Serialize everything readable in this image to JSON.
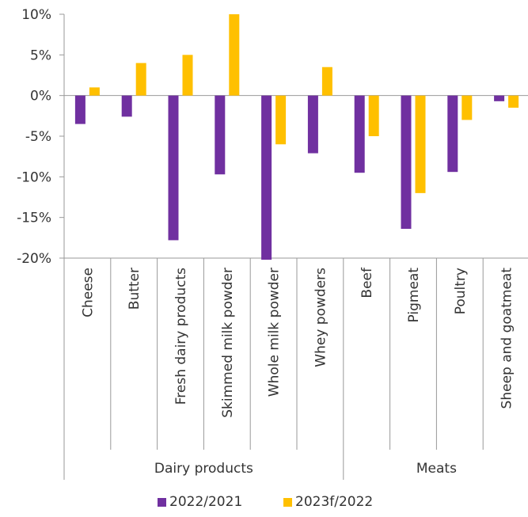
{
  "chart_data": {
    "type": "bar",
    "categories": [
      "Cheese",
      "Butter",
      "Fresh dairy products",
      "Skimmed milk powder",
      "Whole milk powder",
      "Whey powders",
      "Beef",
      "Pigmeat",
      "Poultry",
      "Sheep and goatmeat"
    ],
    "groups": [
      {
        "label": "Dairy products",
        "categories": [
          "Cheese",
          "Butter",
          "Fresh dairy products",
          "Skimmed milk powder",
          "Whole milk powder",
          "Whey powders"
        ]
      },
      {
        "label": "Meats",
        "categories": [
          "Beef",
          "Pigmeat",
          "Poultry",
          "Sheep and goatmeat"
        ]
      }
    ],
    "series": [
      {
        "name": "2022/2021",
        "color": "#7030a0",
        "values": [
          -3.5,
          -2.6,
          -17.8,
          -9.7,
          -20.2,
          -7.1,
          -9.5,
          -16.4,
          -9.4,
          -0.7
        ]
      },
      {
        "name": "2023f/2022",
        "color": "#ffc000",
        "values": [
          1.0,
          4.0,
          5.0,
          10.0,
          -6.0,
          3.5,
          -5.0,
          -12.0,
          -3.0,
          -1.5
        ]
      }
    ],
    "ylim": [
      -20,
      10
    ],
    "yticks": [
      10,
      5,
      0,
      -5,
      -10,
      -15,
      -20
    ],
    "ytick_labels": [
      "10%",
      "5%",
      "0%",
      "-5%",
      "-10%",
      "-15%",
      "-20%"
    ],
    "legend_position": "bottom",
    "grid": false
  }
}
